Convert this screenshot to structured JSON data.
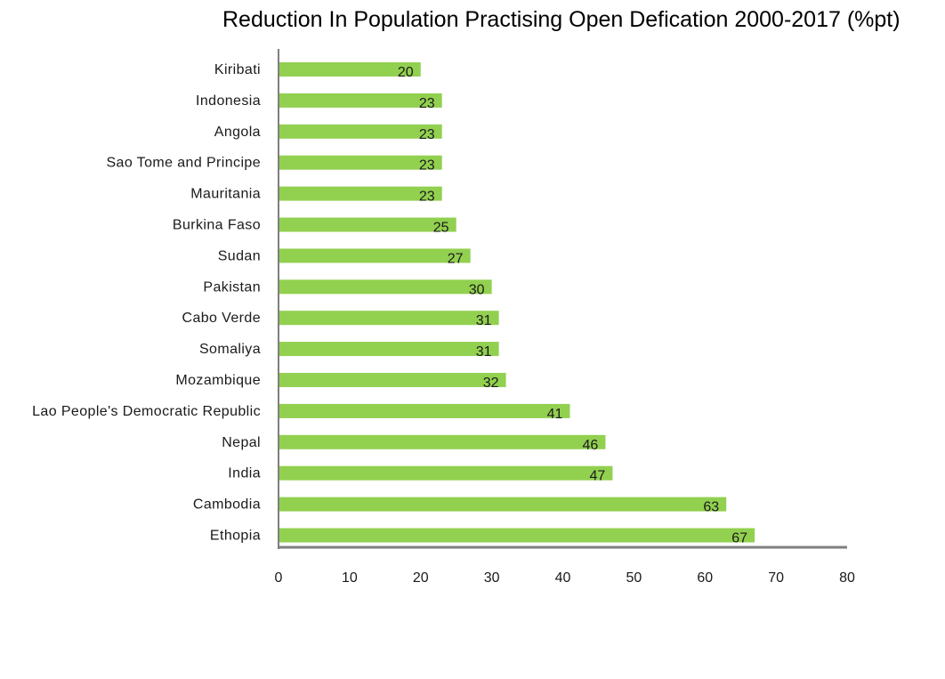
{
  "chart_data": {
    "type": "bar",
    "orientation": "horizontal",
    "title": "Reduction In Population Practising Open Defication 2000-2017 (%pt)",
    "categories": [
      "Kiribati",
      "Indonesia",
      "Angola",
      "Sao Tome and Principe",
      "Mauritania",
      "Burkina Faso",
      "Sudan",
      "Pakistan",
      "Cabo Verde",
      "Somaliya",
      "Mozambique",
      "Lao People's Democratic Republic",
      "Nepal",
      "India",
      "Cambodia",
      "Ethopia"
    ],
    "values": [
      20,
      23,
      23,
      23,
      23,
      25,
      27,
      30,
      31,
      31,
      32,
      41,
      46,
      47,
      63,
      67
    ],
    "xlim": [
      0,
      80
    ],
    "xticks": [
      "0",
      "10",
      "20",
      "30",
      "40",
      "50",
      "60",
      "70",
      "80"
    ],
    "bar_color": "#92d050",
    "grid": false,
    "data_labels": true
  }
}
